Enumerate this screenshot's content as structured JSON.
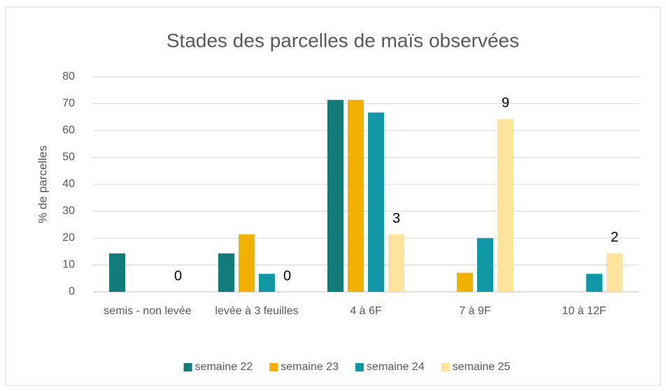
{
  "chart_data": {
    "type": "bar",
    "title": "Stades des parcelles de maïs observées",
    "y_label": "% de parcelles",
    "categories": [
      "semis - non levée",
      "levée à 3 feuilles",
      "4 à 6F",
      "7 à 9F",
      "10 à 12F"
    ],
    "series": [
      {
        "name": "semaine 22",
        "color": "#137b79",
        "values": [
          14.3,
          14.3,
          71.4,
          0,
          0
        ]
      },
      {
        "name": "semaine 23",
        "color": "#f2b000",
        "values": [
          0,
          21.4,
          71.4,
          7.1,
          0
        ]
      },
      {
        "name": "semaine 24",
        "color": "#1297a6",
        "values": [
          0,
          6.7,
          66.7,
          20,
          6.7
        ]
      },
      {
        "name": "semaine 25",
        "color": "#fde39b",
        "values": [
          0,
          0,
          21.4,
          64.3,
          14.3
        ]
      }
    ],
    "annotations": [
      "0",
      "0",
      "3",
      "9",
      "2"
    ],
    "ylim": [
      0,
      80
    ],
    "yticks": [
      0,
      10,
      20,
      30,
      40,
      50,
      60,
      70,
      80
    ],
    "grid": true,
    "legend": "bottom"
  }
}
